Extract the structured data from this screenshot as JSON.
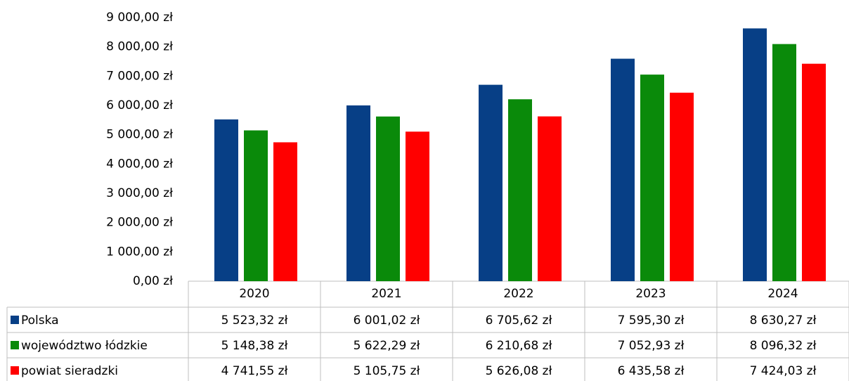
{
  "chart_data": {
    "type": "bar",
    "categories": [
      "2020",
      "2021",
      "2022",
      "2023",
      "2024"
    ],
    "series": [
      {
        "name": "Polska",
        "color": "#073f86",
        "values": [
          5523.32,
          6001.02,
          6705.62,
          7595.3,
          8630.27
        ],
        "value_labels": [
          "5 523,32 zł",
          "6 001,02 zł",
          "6 705,62 zł",
          "7 595,30 zł",
          "8 630,27 zł"
        ]
      },
      {
        "name": "województwo łódzkie",
        "color": "#0a8a0a",
        "values": [
          5148.38,
          5622.29,
          6210.68,
          7052.93,
          8096.32
        ],
        "value_labels": [
          "5 148,38 zł",
          "5 622,29 zł",
          "6 210,68 zł",
          "7 052,93 zł",
          "8 096,32 zł"
        ]
      },
      {
        "name": "powiat sieradzki",
        "color": "#ff0000",
        "values": [
          4741.55,
          5105.75,
          5626.08,
          6435.58,
          7424.03
        ],
        "value_labels": [
          "4 741,55 zł",
          "5 105,75 zł",
          "5 626,08 zł",
          "6 435,58 zł",
          "7 424,03 zł"
        ]
      }
    ],
    "ylim": [
      0,
      9000
    ],
    "yticks": [
      {
        "value": 0,
        "label": "0,00 zł"
      },
      {
        "value": 1000,
        "label": "1 000,00 zł"
      },
      {
        "value": 2000,
        "label": "2 000,00 zł"
      },
      {
        "value": 3000,
        "label": "3 000,00 zł"
      },
      {
        "value": 4000,
        "label": "4 000,00 zł"
      },
      {
        "value": 5000,
        "label": "5 000,00 zł"
      },
      {
        "value": 6000,
        "label": "6 000,00 zł"
      },
      {
        "value": 7000,
        "label": "7 000,00 zł"
      },
      {
        "value": 8000,
        "label": "8 000,00 zł"
      },
      {
        "value": 9000,
        "label": "9 000,00 zł"
      }
    ],
    "grid": false
  }
}
